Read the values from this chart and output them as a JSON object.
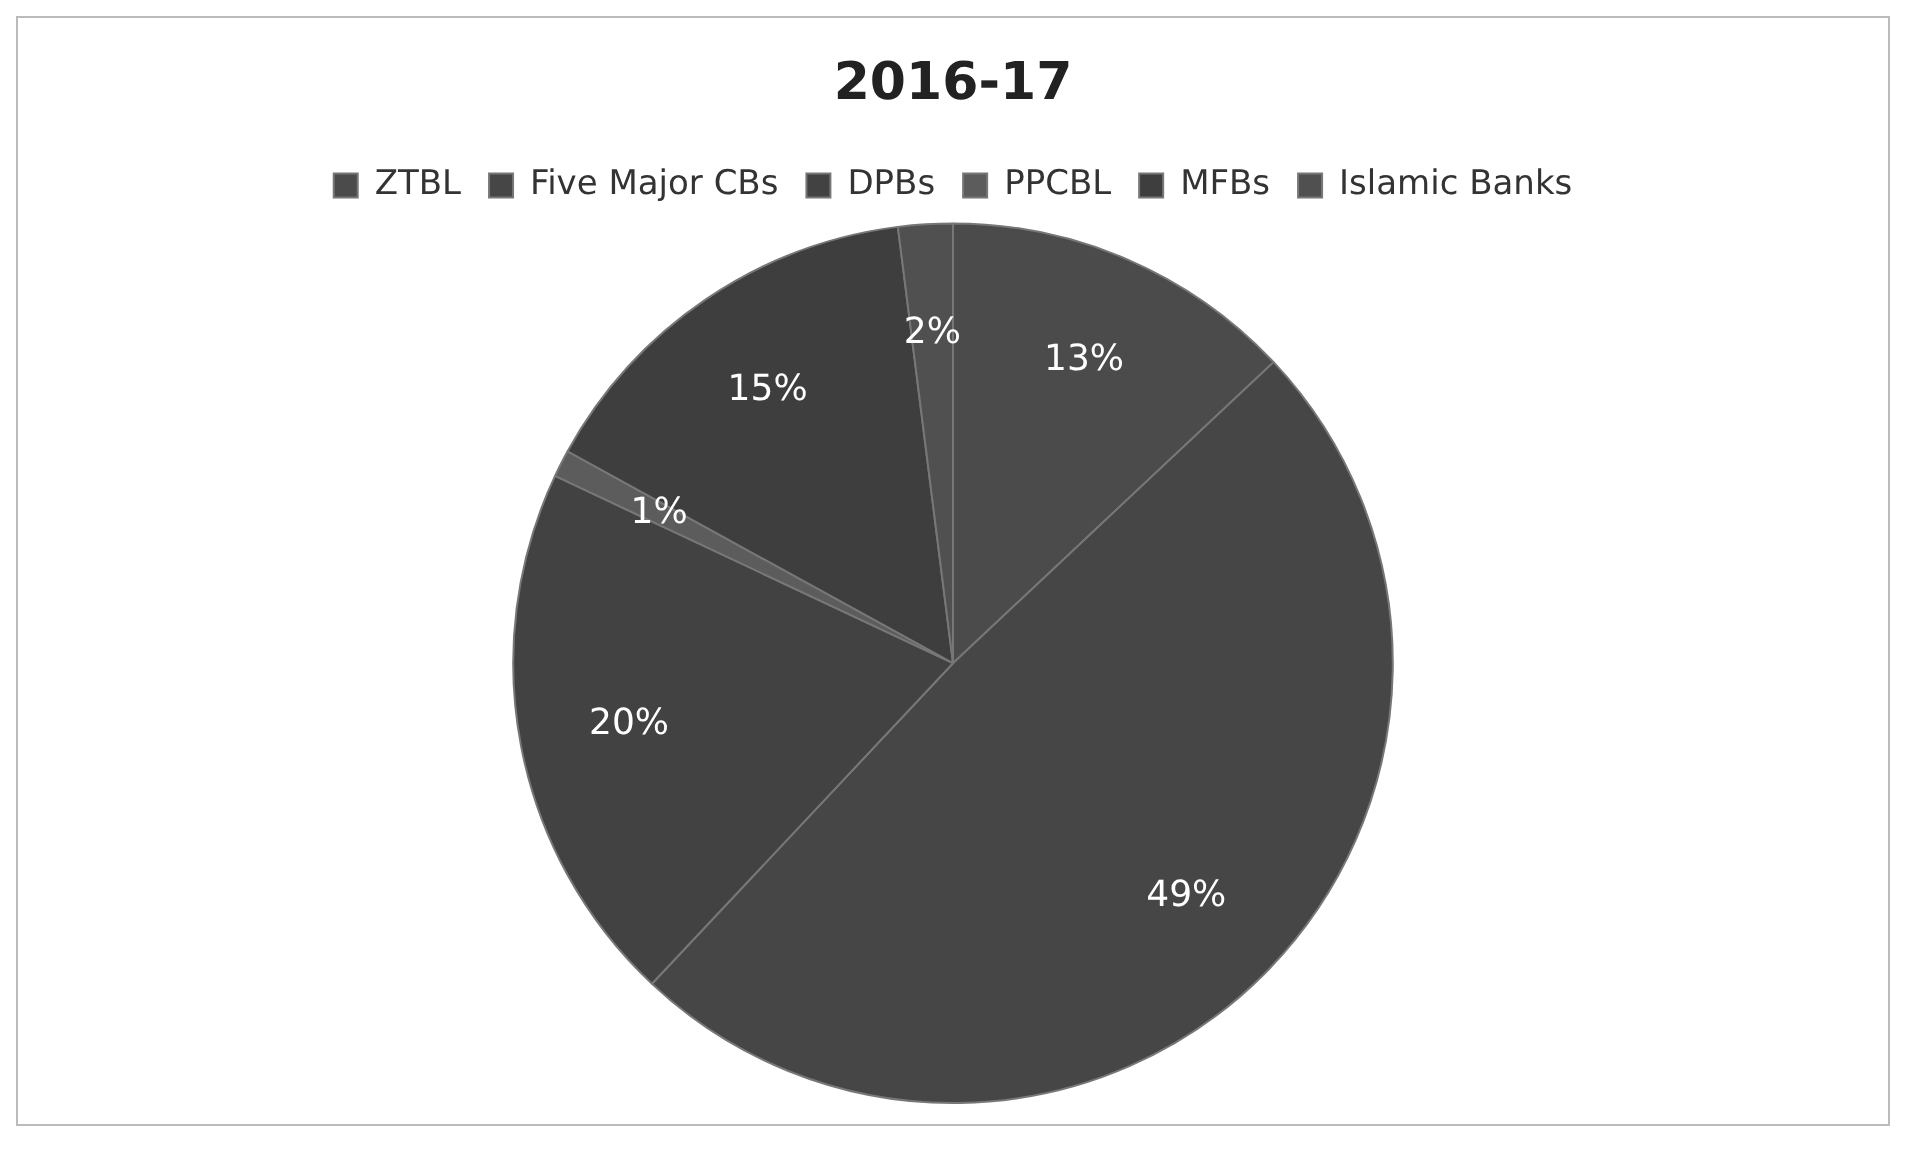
{
  "chart_data": {
    "type": "pie",
    "title": "2016-17",
    "categories": [
      "ZTBL",
      "Five Major CBs",
      "DPBs",
      "PPCBL",
      "MFBs",
      "Islamic Banks"
    ],
    "values": [
      13,
      49,
      20,
      1,
      15,
      2
    ],
    "colors": [
      "#4b4b4b",
      "#464646",
      "#424242",
      "#5c5c5c",
      "#3e3e3e",
      "#505050"
    ],
    "value_labels": [
      "13%",
      "49%",
      "20%",
      "1%",
      "15%",
      "2%"
    ],
    "legend": "top"
  }
}
